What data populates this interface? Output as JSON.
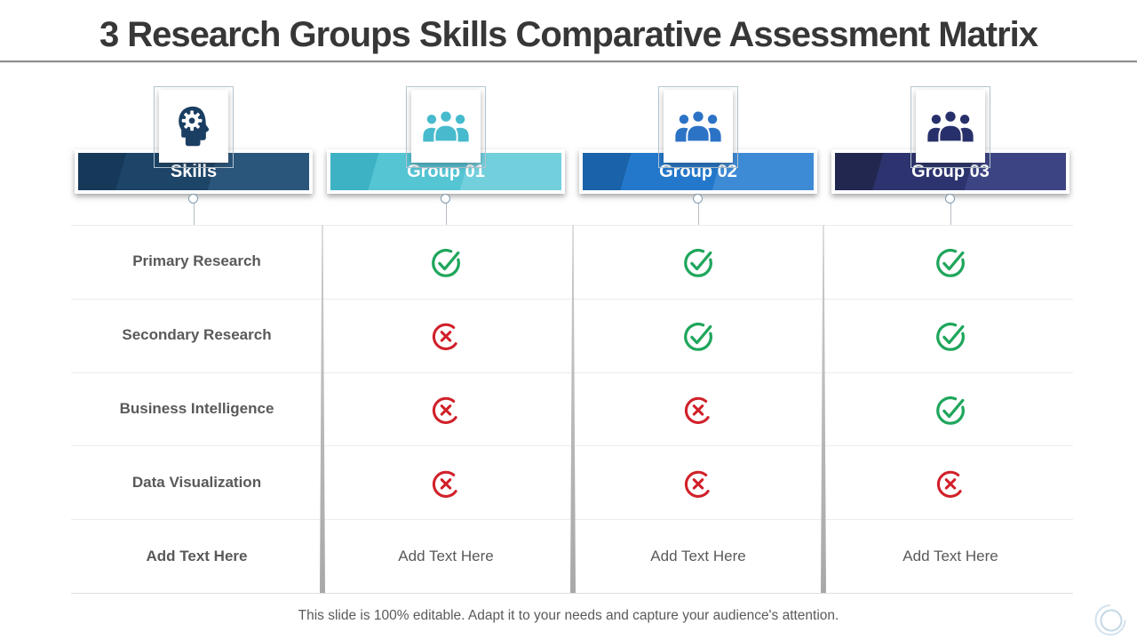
{
  "title": "3 Research Groups Skills Comparative Assessment Matrix",
  "footer_note": "This slide is 100% editable. Adapt it to your needs and capture your audience's attention.",
  "matrix": {
    "columns": [
      {
        "label": "Skills",
        "icon": "head-gear-icon",
        "icon_color": "#1b3f63",
        "banner": {
          "dark": "#16395a",
          "main": "#1c4568",
          "light": "#2b567b"
        }
      },
      {
        "label": "Group 01",
        "icon": "team-icon",
        "icon_color": "#47bacd",
        "banner": {
          "dark": "#3eb2c5",
          "main": "#55c4d3",
          "light": "#72d0dd"
        }
      },
      {
        "label": "Group 02",
        "icon": "team-icon",
        "icon_color": "#2c73c6",
        "banner": {
          "dark": "#1a62a9",
          "main": "#2478cb",
          "light": "#3e8bd5"
        }
      },
      {
        "label": "Group 03",
        "icon": "team-icon",
        "icon_color": "#28306b",
        "banner": {
          "dark": "#222750",
          "main": "#2d336e",
          "light": "#3d4483"
        }
      }
    ],
    "rows": [
      {
        "label": "Primary Research",
        "cells": [
          "check",
          "check",
          "check"
        ]
      },
      {
        "label": "Secondary Research",
        "cells": [
          "cross",
          "check",
          "check"
        ]
      },
      {
        "label": "Business Intelligence",
        "cells": [
          "cross",
          "cross",
          "check"
        ]
      },
      {
        "label": "Data Visualization",
        "cells": [
          "cross",
          "cross",
          "cross"
        ]
      },
      {
        "label": "Add Text Here",
        "cells": [
          "text",
          "text",
          "text"
        ],
        "placeholder_text": "Add Text Here"
      }
    ],
    "symbols": {
      "check_color": "#1fa65c",
      "cross_color": "#d1202a",
      "check_meaning": "skill present",
      "cross_meaning": "skill absent"
    }
  },
  "colors": {
    "row_label": "#595959",
    "separator": "#ececec",
    "title_text": "#373737",
    "swirl_logo": "#c3d8e6"
  }
}
